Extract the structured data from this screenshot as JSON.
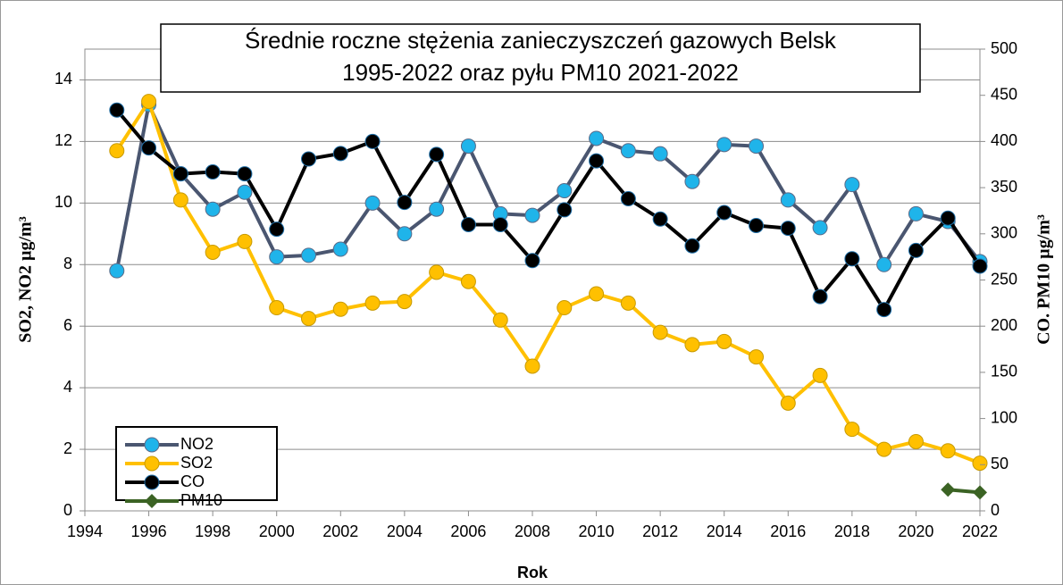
{
  "chart_data": {
    "type": "line",
    "title": [
      "Średnie roczne stężenia zanieczyszczeń gazowych Belsk",
      "1995-2022 oraz pyłu PM10 2021-2022"
    ],
    "x_label": "Rok",
    "y_label": "SO2, NO2  µg/m³",
    "y2_label": "CO. PM10  µg/m³",
    "x": [
      1995,
      1996,
      1997,
      1998,
      1999,
      2000,
      2001,
      2002,
      2003,
      2004,
      2005,
      2006,
      2007,
      2008,
      2009,
      2010,
      2011,
      2012,
      2013,
      2014,
      2015,
      2016,
      2017,
      2018,
      2019,
      2020,
      2021,
      2022
    ],
    "xlim": [
      1994,
      2022
    ],
    "xticks": [
      1994,
      1996,
      1998,
      2000,
      2002,
      2004,
      2006,
      2008,
      2010,
      2012,
      2014,
      2016,
      2018,
      2020,
      2022
    ],
    "ylim": [
      0,
      15
    ],
    "yticks": [
      0,
      2,
      4,
      6,
      8,
      10,
      12,
      14
    ],
    "y2lim": [
      0,
      500
    ],
    "y2ticks": [
      0,
      50,
      100,
      150,
      200,
      250,
      300,
      350,
      400,
      450,
      500
    ],
    "grid": true,
    "legend": "lower left",
    "series": [
      {
        "name": "NO2",
        "color": "#4a5670",
        "marker_color": "#1fb4ea",
        "marker": "circle",
        "axis": "y",
        "values": [
          7.8,
          13.2,
          10.95,
          9.8,
          10.35,
          8.25,
          8.3,
          8.5,
          10.0,
          9.0,
          9.8,
          11.85,
          9.65,
          9.6,
          10.4,
          12.1,
          11.7,
          11.6,
          10.7,
          11.9,
          11.85,
          10.1,
          9.2,
          10.6,
          8.0,
          9.65,
          9.4,
          8.1
        ]
      },
      {
        "name": "SO2",
        "color": "#ffc000",
        "marker_color": "#ffc000",
        "marker": "circle",
        "axis": "y",
        "values": [
          11.7,
          13.3,
          10.1,
          8.4,
          8.75,
          6.6,
          6.25,
          6.55,
          6.75,
          6.8,
          7.75,
          7.45,
          6.2,
          4.7,
          6.6,
          7.05,
          6.75,
          5.8,
          5.4,
          5.5,
          5.0,
          3.5,
          4.4,
          2.65,
          2.0,
          2.25,
          1.95,
          1.55
        ]
      },
      {
        "name": "CO",
        "color": "#000000",
        "marker_color": "#000000",
        "marker": "circle",
        "axis": "y2",
        "values": [
          434,
          393,
          365,
          367,
          365,
          305,
          381,
          387,
          400,
          334,
          386,
          310,
          310,
          271,
          326,
          379,
          338,
          316,
          287,
          323,
          309,
          306,
          232,
          273,
          218,
          282,
          317,
          265
        ]
      },
      {
        "name": "PM10",
        "color": "#3b6324",
        "marker_color": "#3b6324",
        "marker": "diamond",
        "axis": "y2",
        "values": [
          null,
          null,
          null,
          null,
          null,
          null,
          null,
          null,
          null,
          null,
          null,
          null,
          null,
          null,
          null,
          null,
          null,
          null,
          null,
          null,
          null,
          null,
          null,
          null,
          null,
          null,
          23,
          20
        ]
      }
    ]
  }
}
